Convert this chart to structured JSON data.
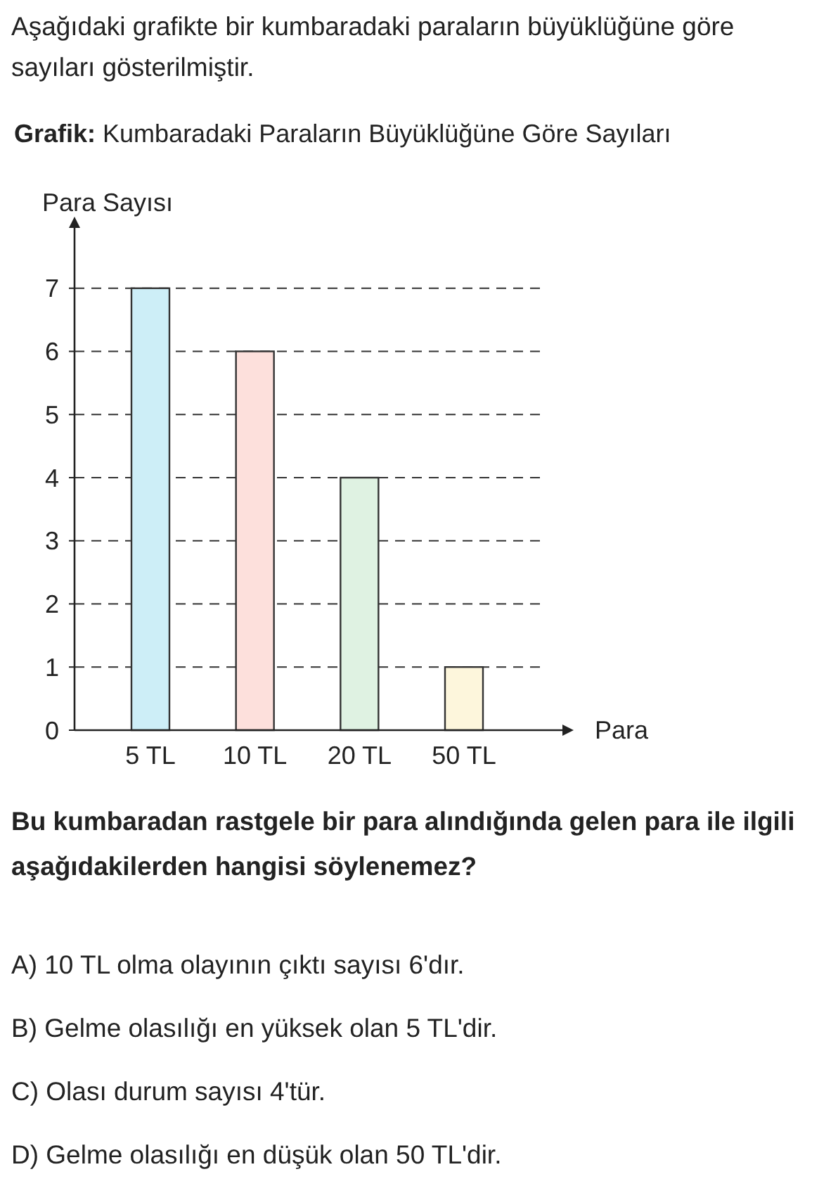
{
  "chart_data": {
    "type": "bar",
    "subtitle": "Aşağıdaki grafikte bir kumbaradaki paraların büyüklüğüne göre sayıları gösterilmiştir.",
    "title": "Grafik: Kumbaradaki Paraların Büyüklüğüne Göre Sayıları",
    "xlabel": "Para",
    "ylabel": "Para Sayısı",
    "categories": [
      "5 TL",
      "10 TL",
      "20 TL",
      "50 TL"
    ],
    "values": [
      7,
      6,
      4,
      1
    ],
    "colors": [
      "#cdeef7",
      "#fde0dc",
      "#dff2e2",
      "#fdf6dc"
    ],
    "ylim": [
      0,
      8
    ],
    "yticks": [
      0,
      1,
      2,
      3,
      4,
      5,
      6,
      7
    ],
    "grid": "y",
    "annotations": [
      "Bu kumbaradan rastgele bir para alındığında gelen para ile ilgili aşağıdakilerden hangisi söylenemez?",
      "A)  10 TL olma olayının çıktı sayısı 6'dır.",
      "B)  Gelme olasılığı en yüksek olan 5 TL'dir.",
      "C)  Olası durum sayısı 4'tür.",
      "D)  Gelme olasılığı en düşük olan 50 TL'dir."
    ]
  }
}
